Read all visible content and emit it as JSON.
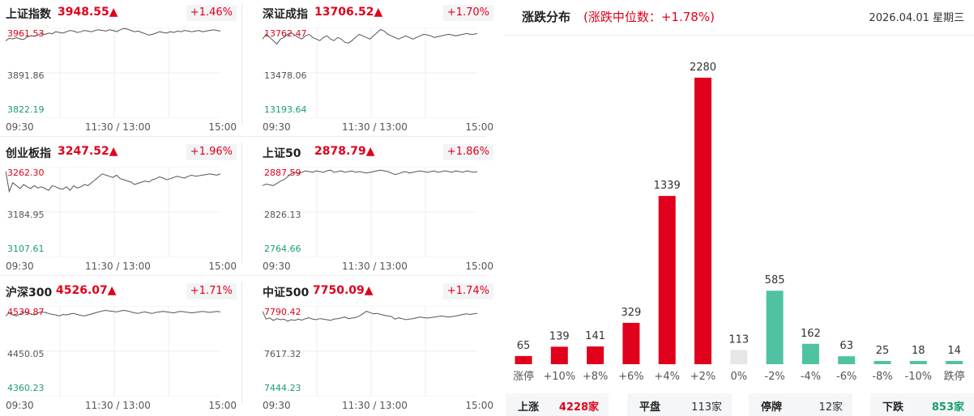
{
  "indices": [
    {
      "name": "上证指数",
      "price": "3948.55▲",
      "pct": "+1.46%",
      "ymax": "3961.53",
      "ymid": "3891.86",
      "ymin": "3822.19",
      "series": [
        3941,
        3945,
        3944,
        3946,
        3944,
        3943,
        3947,
        3949,
        3948,
        3950,
        3952,
        3951,
        3953,
        3952,
        3955,
        3954,
        3953,
        3955,
        3957,
        3956,
        3954,
        3955,
        3957,
        3956,
        3955,
        3957,
        3958,
        3957,
        3956,
        3958,
        3957,
        3955,
        3958,
        3960,
        3959,
        3957,
        3955,
        3956,
        3954,
        3952,
        3950,
        3951,
        3953,
        3955,
        3954,
        3953,
        3955,
        3954,
        3956,
        3955,
        3957,
        3956,
        3955,
        3956,
        3957,
        3955,
        3956,
        3957,
        3958,
        3957,
        3956
      ]
    },
    {
      "name": "深证成指",
      "price": "13706.52▲",
      "pct": "+1.70%",
      "ymax": "13762.47",
      "ymid": "13478.06",
      "ymin": "13193.64",
      "series": [
        13690,
        13720,
        13700,
        13680,
        13660,
        13690,
        13700,
        13720,
        13730,
        13715,
        13700,
        13690,
        13710,
        13720,
        13700,
        13690,
        13680,
        13700,
        13710,
        13690,
        13680,
        13700,
        13690,
        13670,
        13665,
        13680,
        13700,
        13720,
        13710,
        13700,
        13690,
        13710,
        13730,
        13750,
        13740,
        13720,
        13710,
        13700,
        13690,
        13700,
        13710,
        13700,
        13690,
        13700,
        13710,
        13720,
        13715,
        13710,
        13700,
        13705,
        13710,
        13715,
        13720,
        13715,
        13710,
        13715,
        13720,
        13725,
        13720,
        13720,
        13725
      ]
    },
    {
      "name": "创业板指",
      "price": "3247.52▲",
      "pct": "+1.96%",
      "ymax": "3262.30",
      "ymid": "3184.95",
      "ymin": "3107.61",
      "series": [
        3255,
        3220,
        3235,
        3230,
        3225,
        3232,
        3228,
        3225,
        3230,
        3226,
        3228,
        3225,
        3222,
        3230,
        3228,
        3225,
        3224,
        3228,
        3222,
        3230,
        3226,
        3228,
        3232,
        3230,
        3235,
        3240,
        3245,
        3250,
        3248,
        3246,
        3244,
        3248,
        3242,
        3240,
        3238,
        3236,
        3232,
        3234,
        3236,
        3238,
        3236,
        3240,
        3242,
        3245,
        3243,
        3240,
        3242,
        3244,
        3246,
        3244,
        3243,
        3246,
        3248,
        3246,
        3247,
        3248,
        3249,
        3250,
        3249,
        3248,
        3250
      ]
    },
    {
      "name": "上证50",
      "price": "2878.79▲",
      "pct": "+1.86%",
      "ymax": "2887.59",
      "ymid": "2826.13",
      "ymin": "2764.66",
      "series": [
        2862,
        2864,
        2863,
        2862,
        2865,
        2868,
        2870,
        2874,
        2878,
        2880,
        2878,
        2880,
        2882,
        2881,
        2880,
        2882,
        2881,
        2880,
        2882,
        2883,
        2880,
        2881,
        2882,
        2880,
        2881,
        2882,
        2880,
        2881,
        2880,
        2879,
        2880,
        2881,
        2882,
        2883,
        2882,
        2881,
        2879,
        2877,
        2878,
        2880,
        2881,
        2879,
        2880,
        2881,
        2882,
        2881,
        2880,
        2881,
        2882,
        2880,
        2881,
        2882,
        2881,
        2880,
        2882,
        2881,
        2880,
        2882,
        2881,
        2880,
        2881
      ]
    },
    {
      "name": "沪深300",
      "price": "4526.07▲",
      "pct": "+1.71%",
      "ymax": "4539.87",
      "ymid": "4450.05",
      "ymin": "4360.23",
      "series": [
        4520,
        4526,
        4522,
        4520,
        4524,
        4528,
        4526,
        4524,
        4522,
        4526,
        4528,
        4527,
        4525,
        4523,
        4522,
        4520,
        4523,
        4522,
        4524,
        4525,
        4523,
        4521,
        4520,
        4522,
        4524,
        4526,
        4528,
        4530,
        4531,
        4530,
        4529,
        4528,
        4530,
        4531,
        4530,
        4528,
        4526,
        4525,
        4527,
        4528,
        4526,
        4525,
        4527,
        4528,
        4529,
        4528,
        4527,
        4526,
        4528,
        4529,
        4528,
        4527,
        4526,
        4527,
        4528,
        4529,
        4528,
        4527,
        4528,
        4529,
        4528
      ]
    },
    {
      "name": "中证500",
      "price": "7750.09▲",
      "pct": "+1.74%",
      "ymax": "7790.42",
      "ymid": "7617.32",
      "ymin": "7444.23",
      "series": [
        7770,
        7740,
        7745,
        7735,
        7742,
        7738,
        7740,
        7732,
        7738,
        7735,
        7740,
        7736,
        7742,
        7745,
        7740,
        7738,
        7742,
        7740,
        7738,
        7735,
        7740,
        7742,
        7745,
        7748,
        7742,
        7744,
        7746,
        7752,
        7760,
        7770,
        7765,
        7760,
        7762,
        7758,
        7755,
        7752,
        7750,
        7740,
        7745,
        7742,
        7738,
        7740,
        7742,
        7745,
        7748,
        7746,
        7744,
        7746,
        7748,
        7750,
        7752,
        7750,
        7748,
        7750,
        7752,
        7755,
        7758,
        7760,
        7758,
        7760,
        7762
      ]
    }
  ],
  "time_labels": {
    "start": "09:30",
    "mid": "11:30 / 13:00",
    "end": "15:00"
  },
  "distribution": {
    "title": "涨跌分布",
    "median": "(涨跌中位数：+1.78%)",
    "date": "2026.04.01 星期三",
    "colors": {
      "up": "#e0001b",
      "flat": "#e6e6e6",
      "down": "#4fc3a1"
    },
    "chart_data": {
      "type": "bar",
      "categories": [
        "涨停",
        "+10%",
        "+8%",
        "+6%",
        "+4%",
        "+2%",
        "0%",
        "-2%",
        "-4%",
        "-6%",
        "-8%",
        "-10%",
        "跌停"
      ],
      "values": [
        65,
        139,
        141,
        329,
        1339,
        2280,
        113,
        585,
        162,
        63,
        25,
        18,
        14
      ],
      "groups": [
        "up",
        "up",
        "up",
        "up",
        "up",
        "up",
        "flat",
        "down",
        "down",
        "down",
        "down",
        "down",
        "down"
      ]
    },
    "summary": [
      {
        "label": "上涨",
        "value": "4228家",
        "color": "#e0001b"
      },
      {
        "label": "平盘",
        "value": "113家",
        "color": "#333333"
      },
      {
        "label": "停牌",
        "value": "12家",
        "color": "#333333"
      },
      {
        "label": "下跌",
        "value": "853家",
        "color": "#1a9e6b"
      }
    ]
  }
}
